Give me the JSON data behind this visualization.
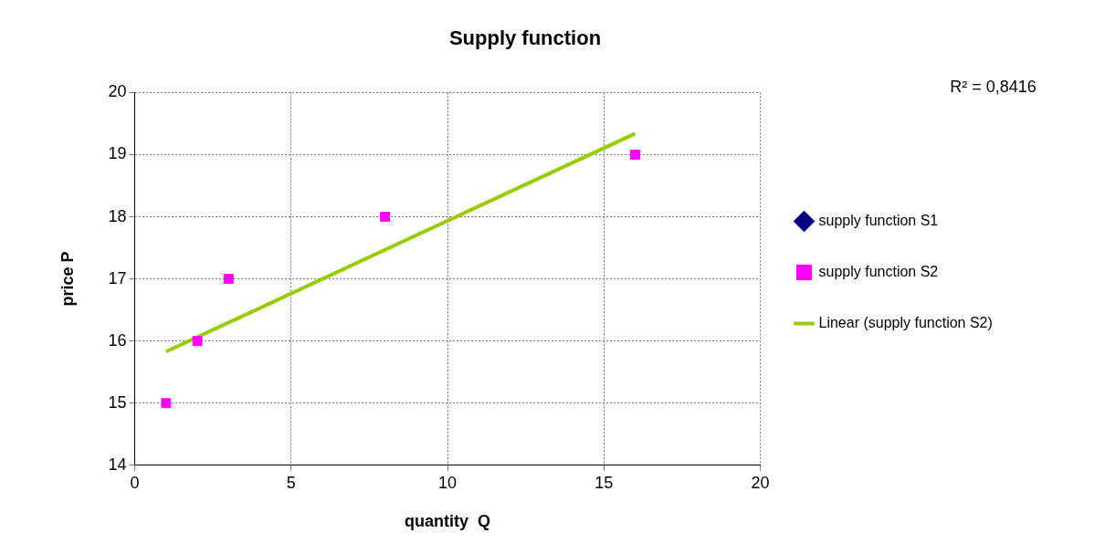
{
  "chart_data": {
    "type": "scatter",
    "title": "Supply function",
    "xlabel": "quantity  Q",
    "ylabel": "price P",
    "xlim": [
      0,
      20
    ],
    "xticks": [
      0,
      5,
      10,
      15,
      20
    ],
    "ylim": [
      14,
      20
    ],
    "yticks": [
      14,
      15,
      16,
      17,
      18,
      19,
      20
    ],
    "grid": true,
    "legend": "right",
    "annotations": [
      "R² = 0,8416"
    ],
    "series": [
      {
        "name": "supply function S1",
        "type": "scatter",
        "color": "#000080",
        "marker": "diamond"
      },
      {
        "name": "supply function S2",
        "type": "scatter",
        "color": "#ff00ff",
        "marker": "square",
        "x": [
          1,
          2,
          3,
          8,
          16
        ],
        "values": [
          15,
          16,
          17,
          18,
          19
        ]
      },
      {
        "name": "Linear (supply function S2)",
        "type": "line",
        "color": "#99cc00",
        "marker": "none",
        "line_style": "solid",
        "x": [
          1,
          16
        ],
        "values": [
          15.83,
          19.34
        ]
      }
    ]
  }
}
